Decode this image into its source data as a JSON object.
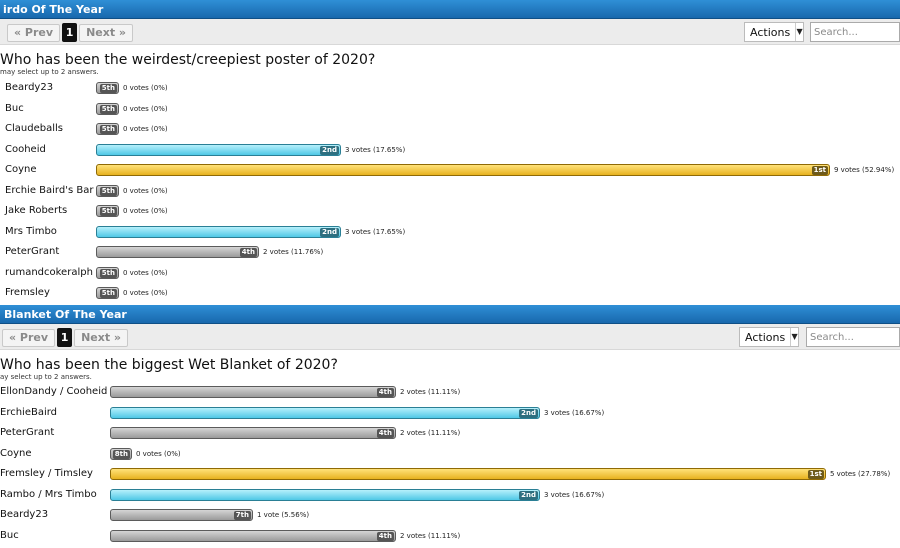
{
  "sections": [
    {
      "title": "irdo Of The Year",
      "pager": {
        "prev": "« Prev",
        "current": "1",
        "next": "Next »"
      },
      "actions_label": "Actions",
      "search_placeholder": "Search...",
      "question": "Who has been the weirdest/creepiest poster of 2020?",
      "note": "may select up to 2 answers.",
      "options": [
        {
          "label": "Beardy23",
          "rank": "5th",
          "votes_text": "0 votes (0%)",
          "fraction": 0.0,
          "color": "gray"
        },
        {
          "label": "Buc",
          "rank": "5th",
          "votes_text": "0 votes (0%)",
          "fraction": 0.0,
          "color": "gray"
        },
        {
          "label": "Claudeballs",
          "rank": "5th",
          "votes_text": "0 votes (0%)",
          "fraction": 0.0,
          "color": "gray"
        },
        {
          "label": "Cooheid",
          "rank": "2nd",
          "votes_text": "3 votes (17.65%)",
          "fraction": 0.3333,
          "color": "blue"
        },
        {
          "label": "Coyne",
          "rank": "1st",
          "votes_text": "9 votes (52.94%)",
          "fraction": 1.0,
          "color": "gold"
        },
        {
          "label": "Erchie Baird's Bar",
          "rank": "5th",
          "votes_text": "0 votes (0%)",
          "fraction": 0.0,
          "color": "gray"
        },
        {
          "label": "Jake Roberts",
          "rank": "5th",
          "votes_text": "0 votes (0%)",
          "fraction": 0.0,
          "color": "gray"
        },
        {
          "label": "Mrs Timbo",
          "rank": "2nd",
          "votes_text": "3 votes (17.65%)",
          "fraction": 0.3333,
          "color": "blue"
        },
        {
          "label": "PeterGrant",
          "rank": "4th",
          "votes_text": "2 votes (11.76%)",
          "fraction": 0.2222,
          "color": "gray"
        },
        {
          "label": "rumandcokeralph",
          "rank": "5th",
          "votes_text": "0 votes (0%)",
          "fraction": 0.0,
          "color": "gray"
        },
        {
          "label": "Fremsley",
          "rank": "5th",
          "votes_text": "0 votes (0%)",
          "fraction": 0.0,
          "color": "gray"
        }
      ]
    },
    {
      "title": "Blanket Of The Year",
      "pager": {
        "prev": "« Prev",
        "current": "1",
        "next": "Next »"
      },
      "actions_label": "Actions",
      "search_placeholder": "Search...",
      "question": "Who has been the biggest Wet Blanket of 2020?",
      "note": "ay select up to 2 answers.",
      "options": [
        {
          "label": "EllonDandy / Cooheid",
          "rank": "4th",
          "votes_text": "2 votes (11.11%)",
          "fraction": 0.4,
          "color": "gray"
        },
        {
          "label": "ErchieBaird",
          "rank": "2nd",
          "votes_text": "3 votes (16.67%)",
          "fraction": 0.6,
          "color": "blue"
        },
        {
          "label": "PeterGrant",
          "rank": "4th",
          "votes_text": "2 votes (11.11%)",
          "fraction": 0.4,
          "color": "gray"
        },
        {
          "label": "Coyne",
          "rank": "8th",
          "votes_text": "0 votes (0%)",
          "fraction": 0.0,
          "color": "gray"
        },
        {
          "label": "Fremsley / Timsley",
          "rank": "1st",
          "votes_text": "5 votes (27.78%)",
          "fraction": 1.0,
          "color": "gold"
        },
        {
          "label": "Rambo / Mrs Timbo",
          "rank": "2nd",
          "votes_text": "3 votes (16.67%)",
          "fraction": 0.6,
          "color": "blue"
        },
        {
          "label": "Beardy23",
          "rank": "7th",
          "votes_text": "1 vote (5.56%)",
          "fraction": 0.2,
          "color": "gray"
        },
        {
          "label": "Buc",
          "rank": "4th",
          "votes_text": "2 votes (11.11%)",
          "fraction": 0.4,
          "color": "gray"
        }
      ]
    }
  ]
}
